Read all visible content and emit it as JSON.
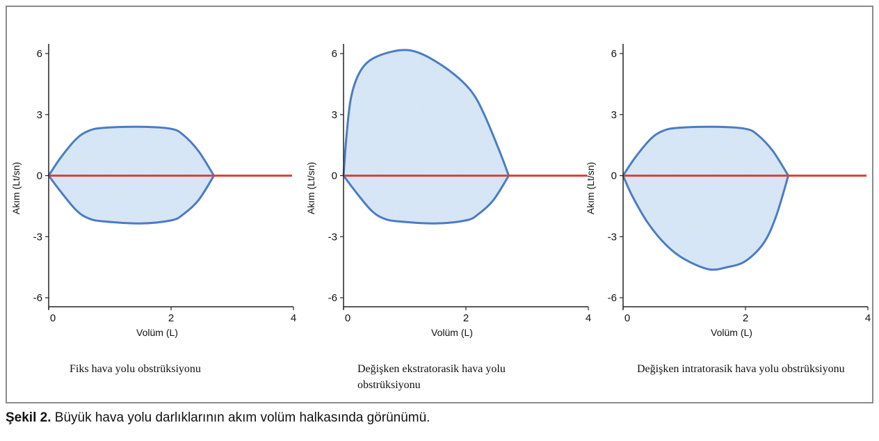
{
  "figure_caption": {
    "label": "Şekil 2.",
    "text": "Büyük hava yolu darlıklarının akım volüm halkasında görünümü."
  },
  "colors": {
    "loop_outline": "#4a7cc4",
    "loop_fill": "#dae8f6",
    "baseline": "#d9453b",
    "axis": "#222222",
    "frame_border": "#8a8a8a"
  },
  "chart_data": [
    {
      "type": "line",
      "panel_caption": "Fiks hava yolu obstrüksiyonu",
      "xlabel": "Volüm (L)",
      "ylabel": "Akım (Lt/sn)",
      "xlim": [
        0,
        4
      ],
      "ylim": [
        -6,
        6
      ],
      "x_ticks": [
        0,
        2,
        4
      ],
      "y_ticks": [
        6,
        3,
        0,
        -3,
        -6
      ],
      "grid": false,
      "baseline": {
        "y": 0,
        "x": [
          0,
          4
        ]
      },
      "expiratory": {
        "x": [
          0,
          0.2,
          0.45,
          0.65,
          0.9,
          1.5,
          2.0,
          2.2,
          2.45,
          2.7
        ],
        "y": [
          0,
          0.9,
          1.8,
          2.2,
          2.35,
          2.4,
          2.3,
          2.0,
          1.2,
          0
        ]
      },
      "inspiratory": {
        "x": [
          0,
          0.2,
          0.45,
          0.65,
          0.9,
          1.5,
          2.0,
          2.2,
          2.45,
          2.7
        ],
        "y": [
          0,
          -0.8,
          -1.7,
          -2.1,
          -2.25,
          -2.35,
          -2.2,
          -1.9,
          -1.2,
          0
        ]
      }
    },
    {
      "type": "line",
      "panel_caption": "Değişken ekstratorasik hava yolu obstrüksiyonu",
      "xlabel": "Volüm (L)",
      "ylabel": "Akım (Lt/sn)",
      "xlim": [
        0,
        4
      ],
      "ylim": [
        -6,
        6
      ],
      "x_ticks": [
        0,
        2,
        4
      ],
      "y_ticks": [
        6,
        3,
        0,
        -3,
        -6
      ],
      "grid": false,
      "baseline": {
        "y": 0,
        "x": [
          0,
          4
        ]
      },
      "expiratory": {
        "x": [
          0,
          0.05,
          0.12,
          0.25,
          0.45,
          0.8,
          1.1,
          1.4,
          1.8,
          2.1,
          2.3,
          2.55,
          2.7
        ],
        "y": [
          0,
          2.0,
          3.8,
          5.0,
          5.7,
          6.1,
          6.15,
          5.8,
          5.0,
          4.1,
          3.0,
          1.2,
          0
        ]
      },
      "inspiratory": {
        "x": [
          0,
          0.2,
          0.45,
          0.65,
          0.9,
          1.5,
          2.0,
          2.2,
          2.45,
          2.7
        ],
        "y": [
          0,
          -0.8,
          -1.7,
          -2.1,
          -2.25,
          -2.35,
          -2.2,
          -1.9,
          -1.2,
          0
        ]
      }
    },
    {
      "type": "line",
      "panel_caption": "Değişken intratorasik hava yolu obstrüksiyonu",
      "xlabel": "Volüm (L)",
      "ylabel": "Akım (Lt/sn)",
      "xlim": [
        0,
        4
      ],
      "ylim": [
        -6,
        6
      ],
      "x_ticks": [
        0,
        2,
        4
      ],
      "y_ticks": [
        6,
        3,
        0,
        -3,
        -6
      ],
      "grid": false,
      "baseline": {
        "y": 0,
        "x": [
          0,
          4
        ]
      },
      "expiratory": {
        "x": [
          0,
          0.2,
          0.45,
          0.65,
          0.9,
          1.5,
          2.0,
          2.2,
          2.45,
          2.7
        ],
        "y": [
          0,
          0.9,
          1.8,
          2.2,
          2.35,
          2.4,
          2.3,
          2.0,
          1.2,
          0
        ]
      },
      "inspiratory": {
        "x": [
          0,
          0.15,
          0.4,
          0.7,
          1.0,
          1.4,
          1.7,
          2.0,
          2.3,
          2.5,
          2.7
        ],
        "y": [
          0,
          -1.0,
          -2.3,
          -3.4,
          -4.1,
          -4.6,
          -4.5,
          -4.2,
          -3.3,
          -2.0,
          0
        ]
      }
    }
  ]
}
